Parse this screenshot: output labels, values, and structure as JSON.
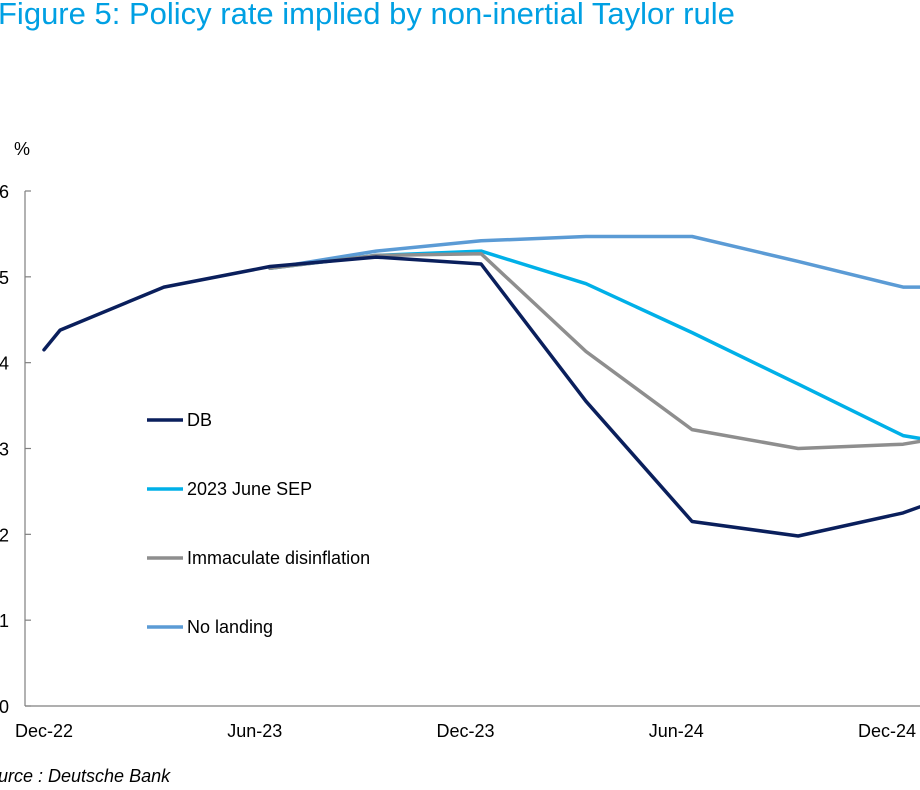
{
  "title": "Figure 5: Policy rate implied by non-inertial Taylor rule",
  "source": "ource : Deutsche Bank",
  "chart_data": {
    "type": "line",
    "ylabel": "%",
    "ylim": [
      0,
      6
    ],
    "yticks": [
      "0",
      "1",
      "2",
      "3",
      "4",
      "5",
      "6"
    ],
    "xticks": [
      "Dec-22",
      "Jun-23",
      "Dec-23",
      "Jun-24",
      "Dec-24"
    ],
    "grid": false,
    "legend_position": "left-middle",
    "series": [
      {
        "name": "DB",
        "color": "#0a1f5c",
        "x": [
          "2022-12-01",
          "2022-12-15",
          "2023-03-15",
          "2023-06-15",
          "2023-09-15",
          "2023-12-15",
          "2024-03-15",
          "2024-06-15",
          "2024-09-15",
          "2024-12-15",
          "2025-01-15"
        ],
        "values": [
          4.15,
          4.38,
          4.88,
          5.12,
          5.23,
          5.15,
          3.55,
          2.15,
          1.98,
          2.25,
          2.4
        ]
      },
      {
        "name": "2023 June SEP",
        "color": "#00b0e8",
        "x": [
          "2023-06-15",
          "2023-09-15",
          "2023-12-15",
          "2024-03-15",
          "2024-06-15",
          "2024-09-15",
          "2024-12-15",
          "2025-01-15"
        ],
        "values": [
          5.1,
          5.25,
          5.3,
          4.92,
          4.35,
          3.75,
          3.15,
          3.08
        ]
      },
      {
        "name": "Immaculate disinflation",
        "color": "#8e8e8e",
        "x": [
          "2023-06-15",
          "2023-09-15",
          "2023-12-15",
          "2024-03-15",
          "2024-06-15",
          "2024-09-15",
          "2024-12-15",
          "2025-01-15"
        ],
        "values": [
          5.1,
          5.25,
          5.27,
          4.13,
          3.22,
          3.0,
          3.05,
          3.12
        ]
      },
      {
        "name": "No landing",
        "color": "#5b9bd5",
        "x": [
          "2023-06-15",
          "2023-09-15",
          "2023-12-15",
          "2024-03-15",
          "2024-06-15",
          "2024-09-15",
          "2024-12-15",
          "2025-01-15"
        ],
        "values": [
          5.1,
          5.3,
          5.42,
          5.47,
          5.47,
          5.18,
          4.88,
          4.88
        ]
      }
    ]
  }
}
